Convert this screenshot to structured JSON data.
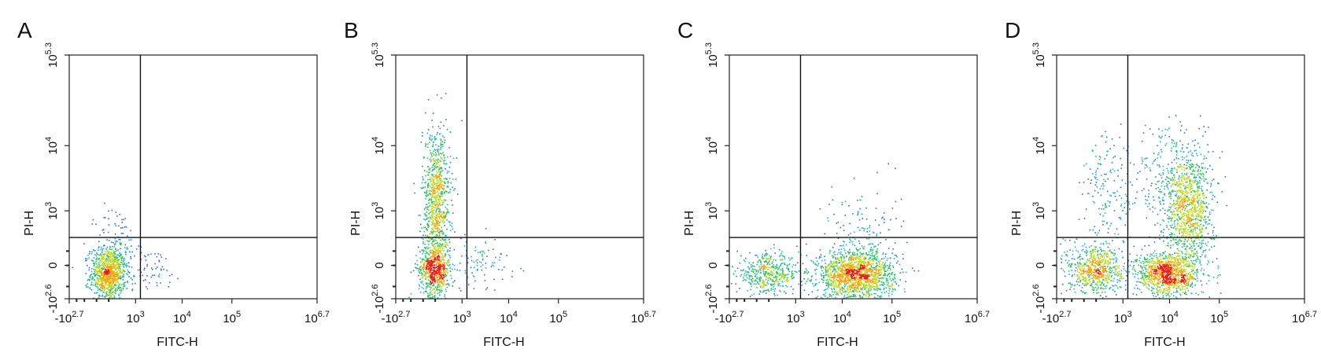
{
  "figure": {
    "panels": [
      "A",
      "B",
      "C",
      "D"
    ]
  },
  "chart_data": [
    {
      "type": "scatter",
      "panel_label": "A",
      "xlabel": "FITC-H",
      "ylabel": "PI-H",
      "x_ticks": [
        {
          "base": "-10",
          "exp": "2.7",
          "value": -501
        },
        {
          "base": "10",
          "exp": "3",
          "value": 1000
        },
        {
          "base": "10",
          "exp": "4",
          "value": 10000
        },
        {
          "base": "10",
          "exp": "5",
          "value": 100000
        },
        {
          "base": "10",
          "exp": "6.7",
          "value": 5011872
        }
      ],
      "y_ticks": [
        {
          "base": "-10",
          "exp": "2.6",
          "value": -398
        },
        {
          "base": "0",
          "exp": "",
          "value": 0
        },
        {
          "base": "10",
          "exp": "3",
          "value": 1000
        },
        {
          "base": "10",
          "exp": "4",
          "value": 10000
        },
        {
          "base": "10",
          "exp": "5.3",
          "value": 199526
        }
      ],
      "axis_scale": "biexponential",
      "quadrant_gate": {
        "x": 1300,
        "y": 300
      },
      "populations": [
        {
          "x": 130,
          "y": -60,
          "sx": 0.5,
          "sy": 0.55,
          "n": 900
        },
        {
          "x": 300,
          "y": 150,
          "sx": 0.6,
          "sy": 0.9,
          "n": 120
        },
        {
          "x": 2000,
          "y": -20,
          "sx": 1.0,
          "sy": 0.45,
          "n": 70
        }
      ]
    },
    {
      "type": "scatter",
      "panel_label": "B",
      "xlabel": "FITC-H",
      "ylabel": "PI-H",
      "x_ticks": [
        {
          "base": "-10",
          "exp": "2.7",
          "value": -501
        },
        {
          "base": "10",
          "exp": "3",
          "value": 1000
        },
        {
          "base": "10",
          "exp": "4",
          "value": 10000
        },
        {
          "base": "10",
          "exp": "5",
          "value": 100000
        },
        {
          "base": "10",
          "exp": "6.7",
          "value": 5011872
        }
      ],
      "y_ticks": [
        {
          "base": "-10",
          "exp": "2.6",
          "value": -398
        },
        {
          "base": "0",
          "exp": "",
          "value": 0
        },
        {
          "base": "10",
          "exp": "3",
          "value": 1000
        },
        {
          "base": "10",
          "exp": "4",
          "value": 10000
        },
        {
          "base": "10",
          "exp": "5.3",
          "value": 199526
        }
      ],
      "axis_scale": "biexponential",
      "quadrant_gate": {
        "x": 1300,
        "y": 300
      },
      "populations": [
        {
          "x": 130,
          "y": -20,
          "sx": 0.45,
          "sy": 0.55,
          "n": 650
        },
        {
          "x": 160,
          "y": 1500,
          "sx": 0.4,
          "sy": 1.5,
          "n": 850
        },
        {
          "x": 2500,
          "y": 20,
          "sx": 1.1,
          "sy": 0.55,
          "n": 90
        }
      ]
    },
    {
      "type": "scatter",
      "panel_label": "C",
      "xlabel": "FITC-H",
      "ylabel": "PI-H",
      "x_ticks": [
        {
          "base": "-10",
          "exp": "2.7",
          "value": -501
        },
        {
          "base": "10",
          "exp": "3",
          "value": 1000
        },
        {
          "base": "10",
          "exp": "4",
          "value": 10000
        },
        {
          "base": "10",
          "exp": "5",
          "value": 100000
        },
        {
          "base": "10",
          "exp": "6.7",
          "value": 5011872
        }
      ],
      "y_ticks": [
        {
          "base": "-10",
          "exp": "2.6",
          "value": -398
        },
        {
          "base": "0",
          "exp": "",
          "value": 0
        },
        {
          "base": "10",
          "exp": "3",
          "value": 1000
        },
        {
          "base": "10",
          "exp": "4",
          "value": 10000
        },
        {
          "base": "10",
          "exp": "5.3",
          "value": 199526
        }
      ],
      "axis_scale": "biexponential",
      "quadrant_gate": {
        "x": 1300,
        "y": 300
      },
      "populations": [
        {
          "x": 130,
          "y": -60,
          "sx": 0.9,
          "sy": 0.4,
          "n": 450
        },
        {
          "x": 18000,
          "y": -70,
          "sx": 1.1,
          "sy": 0.5,
          "n": 1500
        },
        {
          "x": 25000,
          "y": 300,
          "sx": 1.1,
          "sy": 1.1,
          "n": 160
        }
      ]
    },
    {
      "type": "scatter",
      "panel_label": "D",
      "xlabel": "FITC-H",
      "ylabel": "PI-H",
      "x_ticks": [
        {
          "base": "-10",
          "exp": "2.7",
          "value": -501
        },
        {
          "base": "10",
          "exp": "3",
          "value": 1000
        },
        {
          "base": "10",
          "exp": "4",
          "value": 10000
        },
        {
          "base": "10",
          "exp": "5",
          "value": 100000
        },
        {
          "base": "10",
          "exp": "6.7",
          "value": 5011872
        }
      ],
      "y_ticks": [
        {
          "base": "-10",
          "exp": "2.6",
          "value": -398
        },
        {
          "base": "0",
          "exp": "",
          "value": 0
        },
        {
          "base": "10",
          "exp": "3",
          "value": 1000
        },
        {
          "base": "10",
          "exp": "4",
          "value": 10000
        },
        {
          "base": "10",
          "exp": "5.3",
          "value": 199526
        }
      ],
      "axis_scale": "biexponential",
      "quadrant_gate": {
        "x": 1300,
        "y": 300
      },
      "populations": [
        {
          "x": 130,
          "y": -20,
          "sx": 0.8,
          "sy": 0.5,
          "n": 650
        },
        {
          "x": 9000,
          "y": -60,
          "sx": 0.9,
          "sy": 0.45,
          "n": 1000
        },
        {
          "x": 25000,
          "y": 1100,
          "sx": 0.65,
          "sy": 1.2,
          "n": 1000
        },
        {
          "x": 400,
          "y": 2000,
          "sx": 0.8,
          "sy": 1.2,
          "n": 170
        },
        {
          "x": 8000,
          "y": 3000,
          "sx": 0.9,
          "sy": 1.2,
          "n": 220
        }
      ]
    }
  ]
}
